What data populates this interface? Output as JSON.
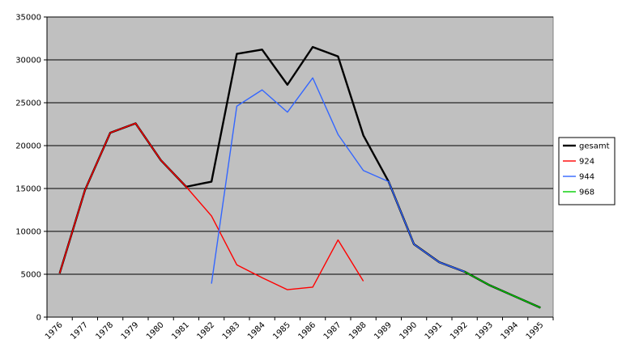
{
  "chart_data": {
    "type": "line",
    "title": "",
    "xlabel": "",
    "ylabel": "",
    "categories": [
      "1976",
      "1977",
      "1978",
      "1979",
      "1980",
      "1981",
      "1982",
      "1983",
      "1984",
      "1985",
      "1986",
      "1987",
      "1988",
      "1989",
      "1990",
      "1991",
      "1992",
      "1993",
      "1994",
      "1995"
    ],
    "ylim": [
      0,
      35000
    ],
    "yticks": [
      0,
      5000,
      10000,
      15000,
      20000,
      25000,
      30000,
      35000
    ],
    "ytick_labels": [
      "0",
      "5000",
      "10000",
      "15000",
      "20000",
      "25000",
      "30000",
      "35000"
    ],
    "grid": true,
    "legend_position": "right",
    "plot_background": "#c0c0c0",
    "series": [
      {
        "name": "gesamt",
        "color": "#000000",
        "values": [
          5100,
          14800,
          21500,
          22600,
          18300,
          15200,
          15800,
          30700,
          31200,
          27100,
          31500,
          30400,
          21200,
          15800,
          8500,
          6400,
          5300,
          3700,
          2400,
          1100
        ]
      },
      {
        "name": "924",
        "color": "#ff0000",
        "values": [
          5100,
          14800,
          21500,
          22600,
          18300,
          15200,
          11800,
          6100,
          4600,
          3200,
          3500,
          9000,
          4200,
          null,
          null,
          null,
          null,
          null,
          null,
          null
        ]
      },
      {
        "name": "944",
        "color": "#3366ff",
        "values": [
          null,
          null,
          null,
          null,
          null,
          null,
          3900,
          24600,
          26500,
          23900,
          27900,
          21300,
          17100,
          15800,
          8500,
          6400,
          5300,
          null,
          null,
          null
        ]
      },
      {
        "name": "968",
        "color": "#00cc00",
        "values": [
          null,
          null,
          null,
          null,
          null,
          null,
          null,
          null,
          null,
          null,
          null,
          null,
          null,
          null,
          null,
          null,
          5300,
          3700,
          2400,
          1100
        ]
      }
    ]
  }
}
